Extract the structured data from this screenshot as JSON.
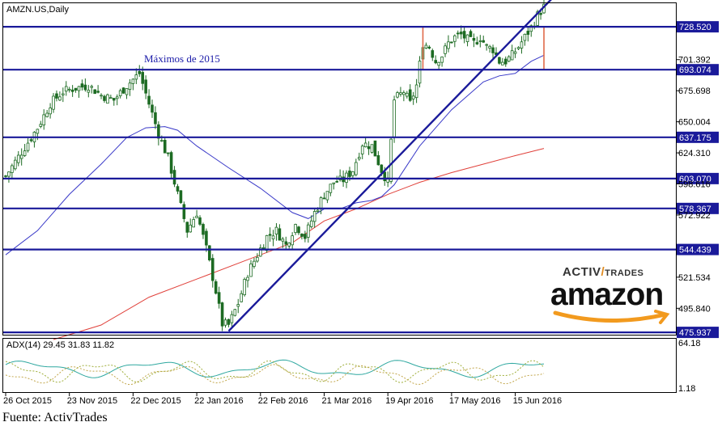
{
  "chart_data": {
    "type": "candlestick",
    "symbol": "AMZN.US,Daily",
    "annotation": "Máximos de 2015",
    "source": "Fuente: ActivTrades",
    "brand": {
      "activ": "ACTIV",
      "slash": "/",
      "trades": "TRADES",
      "amazon": "amazon"
    },
    "price_axis": {
      "ylim": [
        474,
        748
      ],
      "ticks": [
        "701.392",
        "675.698",
        "650.004",
        "624.310",
        "598.616",
        "572.922",
        "521.534",
        "495.840"
      ],
      "tick_values": [
        701.392,
        675.698,
        650.004,
        624.31,
        598.616,
        572.922,
        521.534,
        495.84
      ]
    },
    "support_levels": [
      728.52,
      693.074,
      637.175,
      603.07,
      578.367,
      544.439,
      475.937
    ],
    "support_labels": [
      "728.520",
      "693.074",
      "637.175",
      "603.070",
      "578.367",
      "544.439",
      "475.937"
    ],
    "x_labels": [
      "26 Oct 2015",
      "23 Nov 2015",
      "22 Dec 2015",
      "22 Jan 2016",
      "22 Feb 2016",
      "21 Mar 2016",
      "19 Apr 2016",
      "17 May 2016",
      "15 Jun 2016"
    ],
    "x_label_index": [
      0,
      20,
      40,
      60,
      80,
      100,
      120,
      140,
      160
    ],
    "bars_count": 170,
    "price_anchors": [
      [
        0,
        605
      ],
      [
        5,
        625
      ],
      [
        10,
        645
      ],
      [
        14,
        665
      ],
      [
        18,
        675
      ],
      [
        22,
        678
      ],
      [
        26,
        680
      ],
      [
        30,
        672
      ],
      [
        34,
        668
      ],
      [
        38,
        680
      ],
      [
        42,
        690
      ],
      [
        45,
        665
      ],
      [
        48,
        640
      ],
      [
        51,
        620
      ],
      [
        54,
        590
      ],
      [
        57,
        560
      ],
      [
        60,
        575
      ],
      [
        63,
        545
      ],
      [
        66,
        510
      ],
      [
        68,
        483
      ],
      [
        70,
        482
      ],
      [
        73,
        500
      ],
      [
        76,
        525
      ],
      [
        79,
        540
      ],
      [
        82,
        555
      ],
      [
        85,
        560
      ],
      [
        88,
        548
      ],
      [
        91,
        565
      ],
      [
        94,
        555
      ],
      [
        97,
        575
      ],
      [
        100,
        590
      ],
      [
        103,
        600
      ],
      [
        106,
        602
      ],
      [
        109,
        610
      ],
      [
        112,
        632
      ],
      [
        115,
        630
      ],
      [
        118,
        610
      ],
      [
        120,
        600
      ],
      [
        122,
        668
      ],
      [
        125,
        675
      ],
      [
        127,
        665
      ],
      [
        129,
        680
      ],
      [
        131,
        715
      ],
      [
        133,
        712
      ],
      [
        135,
        700
      ],
      [
        137,
        705
      ],
      [
        139,
        715
      ],
      [
        141,
        720
      ],
      [
        143,
        722
      ],
      [
        145,
        718
      ],
      [
        147,
        715
      ],
      [
        149,
        720
      ],
      [
        151,
        712
      ],
      [
        153,
        710
      ],
      [
        155,
        700
      ],
      [
        157,
        700
      ],
      [
        159,
        705
      ],
      [
        161,
        712
      ],
      [
        163,
        720
      ],
      [
        165,
        728
      ],
      [
        167,
        738
      ],
      [
        169,
        745
      ]
    ],
    "trendline": {
      "from": [
        70,
        477
      ],
      "to": [
        169,
        745
      ]
    },
    "resistance_box": {
      "x_from": 131,
      "x_to": 169,
      "y_from": 693.074,
      "y_to": 728.52
    },
    "ma_blue": {
      "name": "",
      "points": [
        [
          0,
          540
        ],
        [
          10,
          560
        ],
        [
          20,
          590
        ],
        [
          30,
          615
        ],
        [
          38,
          637
        ],
        [
          44,
          645
        ],
        [
          50,
          646
        ],
        [
          54,
          643
        ],
        [
          60,
          630
        ],
        [
          70,
          612
        ],
        [
          80,
          595
        ],
        [
          90,
          575
        ],
        [
          95,
          570
        ],
        [
          100,
          578
        ],
        [
          105,
          578
        ],
        [
          110,
          583
        ],
        [
          115,
          585
        ],
        [
          118,
          588
        ],
        [
          122,
          598
        ],
        [
          130,
          630
        ],
        [
          140,
          660
        ],
        [
          150,
          683
        ],
        [
          155,
          688
        ],
        [
          160,
          690
        ],
        [
          165,
          700
        ],
        [
          169,
          705
        ]
      ]
    },
    "ma_red": {
      "name": "",
      "points": [
        [
          15,
          470
        ],
        [
          30,
          482
        ],
        [
          45,
          505
        ],
        [
          60,
          520
        ],
        [
          75,
          535
        ],
        [
          90,
          550
        ],
        [
          100,
          568
        ],
        [
          110,
          578
        ],
        [
          120,
          590
        ],
        [
          130,
          600
        ],
        [
          140,
          608
        ],
        [
          150,
          615
        ],
        [
          160,
          622
        ],
        [
          169,
          628
        ]
      ]
    },
    "adx": {
      "label": "ADX(14) 29.45 31.83 11.82",
      "ylim": [
        1.18,
        64.18
      ],
      "ticks": [
        "64.18",
        "1.18"
      ],
      "tick_values": [
        64.18,
        1.18
      ]
    }
  }
}
